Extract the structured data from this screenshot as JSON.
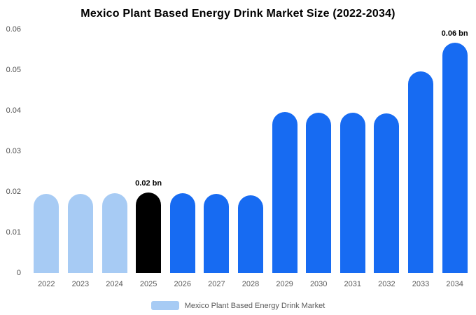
{
  "title": "Mexico Plant Based Energy Drink Market Size (2022-2034)",
  "legend": {
    "label": "Mexico Plant Based Energy Drink Market",
    "swatch_color": "#a7cbf4"
  },
  "colors": {
    "light_blue": "#a7cbf4",
    "blue": "#176bf2",
    "black": "#000000",
    "axis_text": "#4d4d4d",
    "background": "#ffffff"
  },
  "chart_data": {
    "type": "bar",
    "title": "Mexico Plant Based Energy Drink Market Size (2022-2034)",
    "categories": [
      "2022",
      "2023",
      "2024",
      "2025",
      "2026",
      "2027",
      "2028",
      "2029",
      "2030",
      "2031",
      "2032",
      "2033",
      "2034"
    ],
    "values": [
      0.0195,
      0.0195,
      0.0196,
      0.0198,
      0.0196,
      0.0195,
      0.0192,
      0.0396,
      0.0395,
      0.0395,
      0.0393,
      0.0496,
      0.0593
    ],
    "values_rounded": [
      0.02,
      0.02,
      0.02,
      0.02,
      0.02,
      0.02,
      0.02,
      0.04,
      0.04,
      0.04,
      0.04,
      0.05,
      0.06
    ],
    "bar_colors": [
      "#a7cbf4",
      "#a7cbf4",
      "#a7cbf4",
      "#000000",
      "#176bf2",
      "#176bf2",
      "#176bf2",
      "#176bf2",
      "#176bf2",
      "#176bf2",
      "#176bf2",
      "#176bf2",
      "#176bf2"
    ],
    "annotations": [
      {
        "category": "2025",
        "text": "0.02 bn"
      },
      {
        "category": "2034",
        "text": "0.06 bn"
      }
    ],
    "xlabel": "",
    "ylabel": "",
    "yticks": [
      0,
      0.01,
      0.02,
      0.03,
      0.04,
      0.05,
      0.06
    ],
    "ylim": [
      0,
      0.06
    ],
    "grid": false,
    "legend_position": "bottom",
    "unit": "bn"
  }
}
